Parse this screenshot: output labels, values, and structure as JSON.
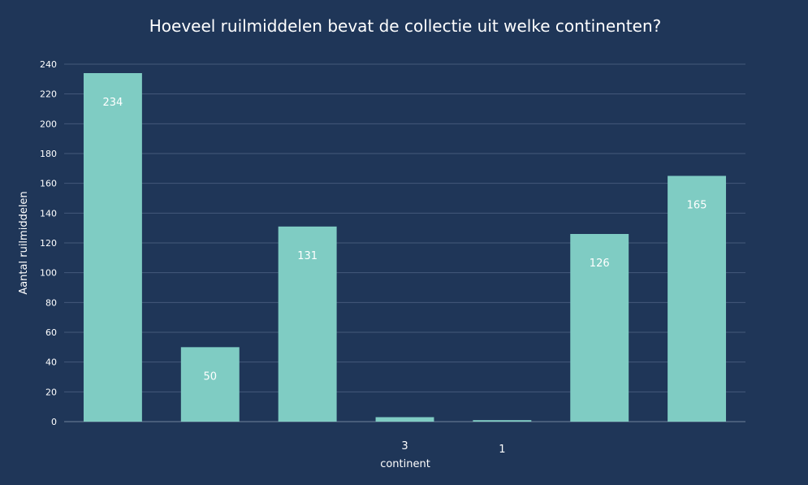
{
  "chart_data": {
    "type": "bar",
    "title": "Hoeveel ruilmiddelen bevat de collectie uit welke continenten?",
    "xlabel": "continent",
    "ylabel": "Aantal ruilmiddelen",
    "categories": [
      "",
      "",
      "",
      "3",
      "1",
      "",
      ""
    ],
    "values": [
      234,
      50,
      131,
      3,
      1,
      126,
      165
    ],
    "data_labels": [
      "234",
      "50",
      "131",
      "",
      "",
      "126",
      "165"
    ],
    "ylim": [
      0,
      240
    ],
    "yticks": [
      0,
      20,
      40,
      60,
      80,
      100,
      120,
      140,
      160,
      180,
      200,
      220,
      240
    ],
    "grid": true,
    "colors": {
      "background": "#1f3658",
      "bar": "#7fccc3",
      "grid": "#44597a",
      "text": "#ffffff"
    }
  }
}
